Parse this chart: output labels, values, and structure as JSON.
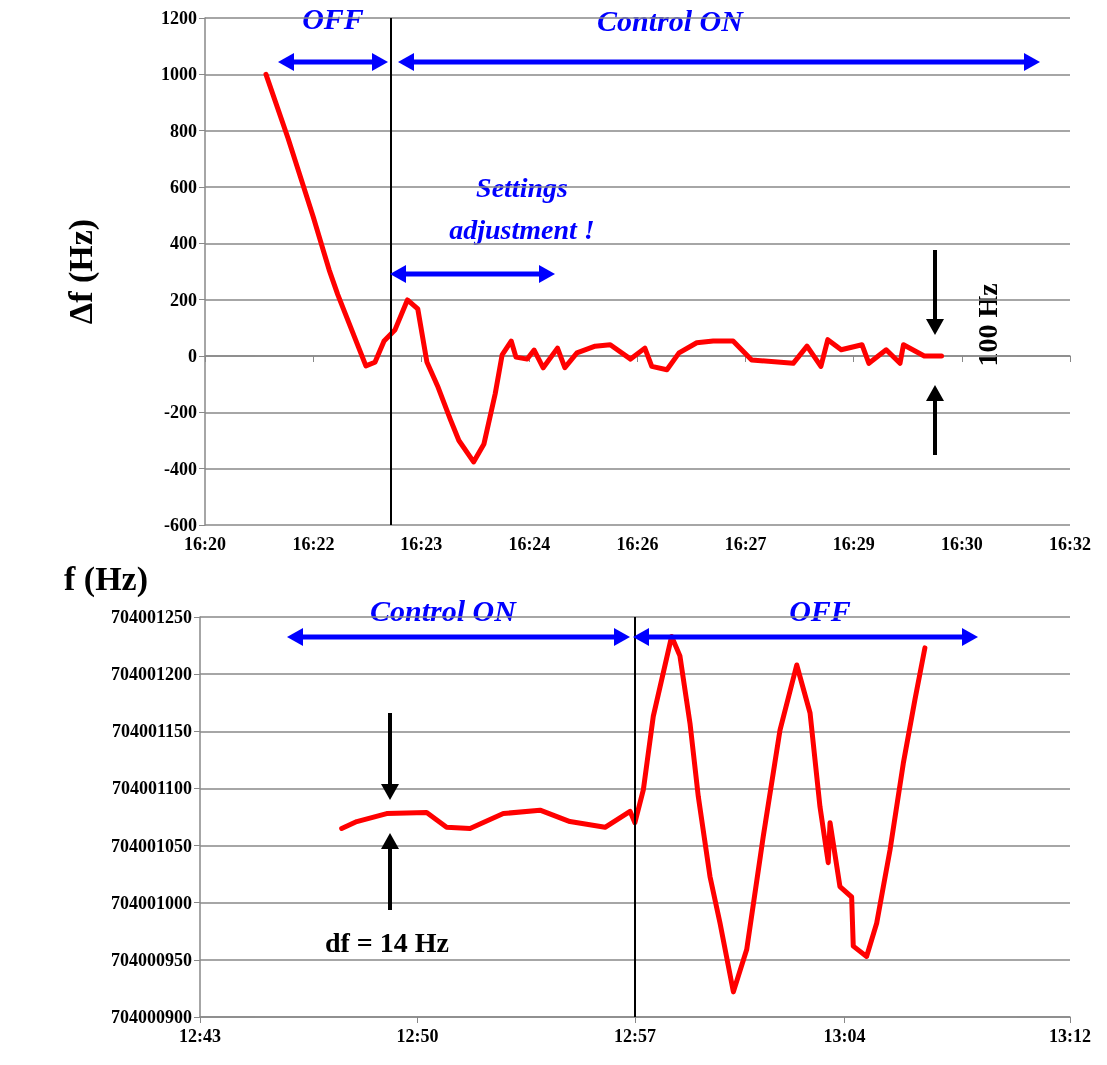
{
  "chart_data": [
    {
      "type": "line",
      "ylabel": "Δf (Hz)",
      "x": [
        16.3474,
        16.3525,
        16.3583,
        16.362,
        16.364,
        16.3705,
        16.3726,
        16.3747,
        16.3772,
        16.3801,
        16.3825,
        16.3846,
        16.3872,
        16.39,
        16.392,
        16.3954,
        16.3978,
        16.4004,
        16.402,
        16.4041,
        16.4052,
        16.4078,
        16.4094,
        16.4115,
        16.4148,
        16.4165,
        16.4193,
        16.4235,
        16.427,
        16.4317,
        16.435,
        16.4366,
        16.4401,
        16.4429,
        16.447,
        16.4508,
        16.4554,
        16.4597,
        16.4693,
        16.4725,
        16.4757,
        16.4773,
        16.4804,
        16.4852,
        16.4868,
        16.4908,
        16.494,
        16.4948,
        16.4996,
        16.5036
      ],
      "values": [
        1000,
        773,
        495,
        306,
        218,
        -35,
        -22,
        53,
        92,
        199,
        167,
        -21,
        -111,
        -224,
        -300,
        -376,
        -312,
        -134,
        4,
        53,
        -4,
        -11,
        21,
        -42,
        28,
        -41,
        11,
        35,
        40,
        -11,
        28,
        -37,
        -49,
        11,
        47,
        53,
        53,
        -14,
        -26,
        35,
        -37,
        58,
        22,
        40,
        -26,
        22,
        -26,
        40,
        0,
        0
      ],
      "color": "#ff0000",
      "marker": "none",
      "grid": "y",
      "xlim": [
        16.3333,
        16.5333
      ],
      "xticks": [
        {
          "value": 16.3333,
          "label": "16:20"
        },
        {
          "value": 16.3584,
          "label": "16:22"
        },
        {
          "value": 16.3833,
          "label": "16:23"
        },
        {
          "value": 16.4083,
          "label": "16:24"
        },
        {
          "value": 16.4333,
          "label": "16:26"
        },
        {
          "value": 16.4583,
          "label": "16:27"
        },
        {
          "value": 16.4833,
          "label": "16:29"
        },
        {
          "value": 16.5083,
          "label": "16:30"
        },
        {
          "value": 16.5333,
          "label": "16:32"
        }
      ],
      "ylim": [
        -600,
        1200
      ],
      "yticks": [
        -600,
        -400,
        -200,
        0,
        200,
        400,
        600,
        800,
        1000,
        1200
      ],
      "ref_lines": [
        {
          "axis": "x",
          "value": 16.3763,
          "color": "#000000"
        }
      ],
      "annotations": [
        "OFF",
        "Control ON",
        "Settings adjustment !",
        "100 Hz"
      ]
    },
    {
      "type": "line",
      "ylabel": "f (Hz)",
      "x": [
        12.7954,
        12.8038,
        12.8204,
        12.8426,
        12.8537,
        12.8667,
        12.8852,
        12.9056,
        12.9222,
        12.9417,
        12.9556,
        12.9583,
        12.963,
        12.9685,
        12.9787,
        12.9833,
        12.9889,
        12.9935,
        13.0,
        13.0056,
        13.013,
        13.0204,
        13.0296,
        13.0389,
        13.0482,
        13.0556,
        13.0611,
        13.0657,
        13.0667,
        13.0722,
        13.0787,
        13.0796,
        13.087,
        13.0926,
        13.1,
        13.1074,
        13.1139,
        13.1194
      ],
      "values": [
        704001065,
        704001071,
        704001078,
        704001079,
        704001066,
        704001065,
        704001078,
        704001081,
        704001071,
        704001066,
        704001080,
        704001070,
        704001099,
        704001163,
        704001233,
        704001216,
        704001157,
        704001093,
        704001023,
        704000982,
        704000922,
        704000959,
        704001058,
        704001151,
        704001208,
        704001166,
        704001084,
        704001035,
        704001070,
        704001014,
        704001005,
        704000962,
        704000953,
        704000982,
        704001046,
        704001122,
        704001178,
        704001223
      ],
      "color": "#ff0000",
      "marker": "none",
      "grid": "y",
      "xlim": [
        12.7167,
        13.2
      ],
      "xticks": [
        {
          "value": 12.7167,
          "label": "12:43"
        },
        {
          "value": 12.8375,
          "label": "12:50"
        },
        {
          "value": 12.9583,
          "label": "12:57"
        },
        {
          "value": 13.0747,
          "label": "13:04"
        },
        {
          "value": 13.2,
          "label": "13:12"
        }
      ],
      "ylim": [
        704000900,
        704001250
      ],
      "yticks": [
        704000900,
        704000950,
        704001000,
        704001050,
        704001100,
        704001150,
        704001200,
        704001250
      ],
      "ref_lines": [
        {
          "axis": "x",
          "value": 12.9583,
          "color": "#000000"
        }
      ],
      "annotations": [
        "Control ON",
        "OFF",
        "df = 14 Hz"
      ]
    }
  ]
}
